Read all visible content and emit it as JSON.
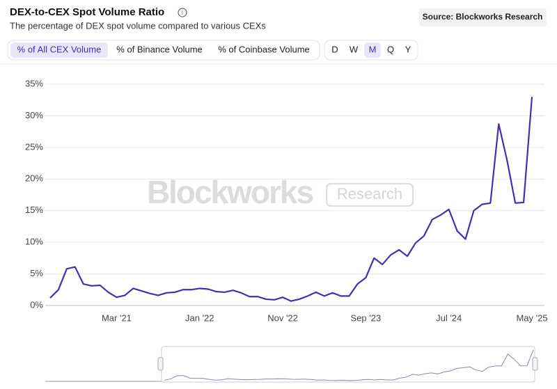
{
  "header": {
    "title": "DEX-to-CEX Spot Volume Ratio",
    "subtitle": "The percentage of DEX spot volume compared to various CEXs",
    "source": "Source: Blockworks Research"
  },
  "tabs": [
    "% of All CEX Volume",
    "% of Binance Volume",
    "% of Coinbase Volume"
  ],
  "periods": [
    "D",
    "W",
    "M",
    "Q",
    "Y"
  ],
  "watermark": {
    "brand": "Blockworks",
    "badge": "Research"
  },
  "chart_data": {
    "type": "line",
    "categories": [
      null,
      null,
      null,
      null,
      null,
      null,
      null,
      null,
      "Mar '21",
      null,
      null,
      null,
      null,
      null,
      null,
      null,
      null,
      null,
      "Jan '22",
      null,
      null,
      null,
      null,
      null,
      null,
      null,
      null,
      null,
      "Nov '22",
      null,
      null,
      null,
      null,
      null,
      null,
      null,
      null,
      null,
      "Sep '23",
      null,
      null,
      null,
      null,
      null,
      null,
      null,
      null,
      null,
      "Jul '24",
      null,
      null,
      null,
      null,
      null,
      null,
      null,
      null,
      null,
      "May '25"
    ],
    "series": [
      {
        "name": "% of All CEX Volume",
        "color": "#4b2ab5",
        "values": [
          1.2,
          2.5,
          5.8,
          6.1,
          3.4,
          3.1,
          3.2,
          2.1,
          1.3,
          1.6,
          2.7,
          2.3,
          1.9,
          1.6,
          2.0,
          2.1,
          2.5,
          2.5,
          2.7,
          2.6,
          2.2,
          2.1,
          2.4,
          2.0,
          1.4,
          1.4,
          1.0,
          0.9,
          1.3,
          0.7,
          1.0,
          1.5,
          2.1,
          1.5,
          2.0,
          1.5,
          1.5,
          3.4,
          4.4,
          7.5,
          6.5,
          8.0,
          8.8,
          7.8,
          9.9,
          11.0,
          13.6,
          14.3,
          15.2,
          11.8,
          10.5,
          15.0,
          16.0,
          16.2,
          28.7,
          23.0,
          16.2,
          16.3,
          33.0
        ]
      }
    ],
    "ylim": [
      0,
      35
    ],
    "yticks": [
      {
        "value": 0,
        "label": "0%"
      },
      {
        "value": 5,
        "label": "5%"
      },
      {
        "value": 10,
        "label": "10%"
      },
      {
        "value": 15,
        "label": "15%"
      },
      {
        "value": 20,
        "label": "20%"
      },
      {
        "value": 25,
        "label": "25%"
      },
      {
        "value": 30,
        "label": "30%"
      },
      {
        "value": 35,
        "label": "35%"
      }
    ],
    "grid": true
  }
}
